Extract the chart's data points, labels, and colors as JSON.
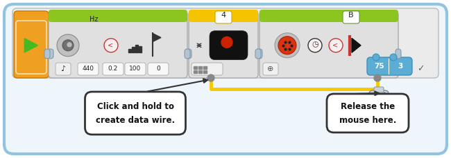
{
  "fig_width": 6.5,
  "fig_height": 2.29,
  "dpi": 100,
  "bg_color": "#ffffff",
  "border_color": "#92c4e0",
  "border_lw": 3.0,
  "outer_bg": "#eef6fb",
  "green_bar": "#8dc520",
  "yellow_bar": "#f5c400",
  "orange_block": "#f0a020",
  "block_body": "#e8e8e8",
  "block_edge": "#c0c0c0",
  "wire_color": "#f5c800",
  "wire_lw": 3.5,
  "callout_font": 8.5,
  "callout_text_left": "Click and hold to\ncreate data wire.",
  "callout_text_right": "Release the\nmouse here.",
  "callout_edge": "#333333",
  "callout_face": "#ffffff",
  "callout_font_color": "#111111",
  "callout_font_bold": true,
  "connector_color": "#aabccc",
  "connector_light": "#d0dde8",
  "blue_display_color": "#5badd4",
  "blue_display_edge": "#4090bb"
}
